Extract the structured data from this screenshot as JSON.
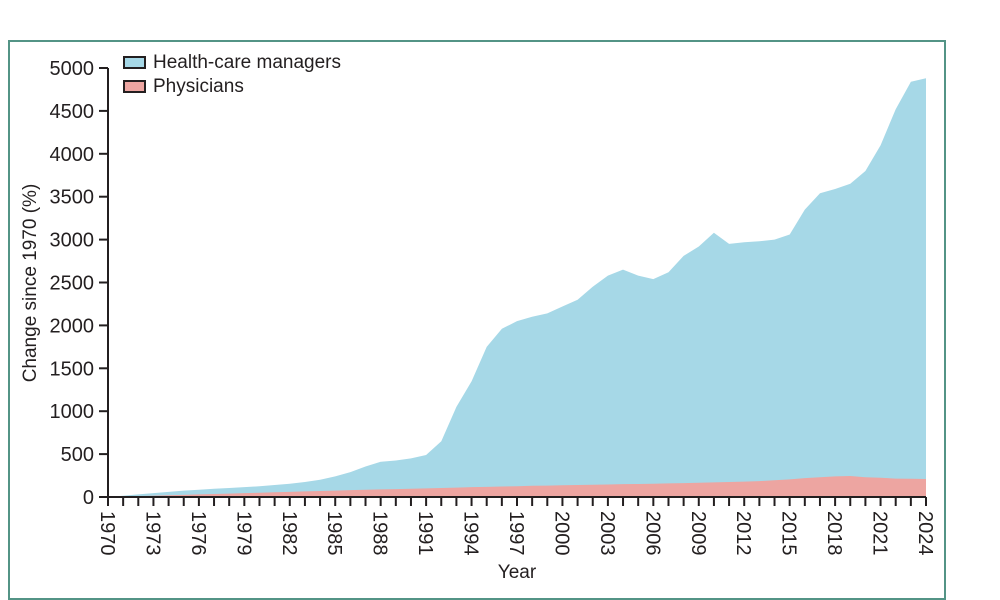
{
  "figure": {
    "frame_border_color": "#539486",
    "background_color": "#ffffff",
    "axis_color": "#231f20"
  },
  "chart_data": {
    "type": "area",
    "title": "",
    "xlabel": "Year",
    "ylabel": "Change since 1970 (%)",
    "xlim": [
      1970,
      2024
    ],
    "ylim": [
      0,
      5000
    ],
    "grid": false,
    "legend_position": "top-left",
    "y_ticks": [
      0,
      500,
      1000,
      1500,
      2000,
      2500,
      3000,
      3500,
      4000,
      4500,
      5000
    ],
    "x_major_ticks": [
      1970,
      1973,
      1976,
      1979,
      1982,
      1985,
      1988,
      1991,
      1994,
      1997,
      2000,
      2003,
      2006,
      2009,
      2012,
      2015,
      2018,
      2021,
      2024
    ],
    "x_minor_tick_step": 1,
    "years": [
      1970,
      1971,
      1972,
      1973,
      1974,
      1975,
      1976,
      1977,
      1978,
      1979,
      1980,
      1981,
      1982,
      1983,
      1984,
      1985,
      1986,
      1987,
      1988,
      1989,
      1990,
      1991,
      1992,
      1993,
      1994,
      1995,
      1996,
      1997,
      1998,
      1999,
      2000,
      2001,
      2002,
      2003,
      2004,
      2005,
      2006,
      2007,
      2008,
      2009,
      2010,
      2011,
      2012,
      2013,
      2014,
      2015,
      2016,
      2017,
      2018,
      2019,
      2020,
      2021,
      2022,
      2023,
      2024
    ],
    "series": [
      {
        "name": "Health-care managers",
        "color": "#a6d8e7",
        "values": [
          0,
          15,
          30,
          45,
          60,
          75,
          85,
          95,
          105,
          115,
          125,
          140,
          155,
          175,
          200,
          240,
          290,
          355,
          410,
          425,
          450,
          490,
          650,
          1050,
          1350,
          1750,
          1960,
          2050,
          2100,
          2140,
          2220,
          2300,
          2450,
          2580,
          2650,
          2580,
          2540,
          2620,
          2810,
          2920,
          3080,
          2950,
          2970,
          2980,
          3000,
          3060,
          3350,
          3540,
          3590,
          3650,
          3800,
          4100,
          4520,
          4840,
          4880
        ]
      },
      {
        "name": "Physicians",
        "color": "#eda5a1",
        "values": [
          0,
          5,
          10,
          15,
          20,
          25,
          30,
          35,
          40,
          45,
          50,
          55,
          60,
          65,
          70,
          75,
          80,
          85,
          88,
          92,
          95,
          100,
          105,
          110,
          115,
          118,
          122,
          126,
          130,
          133,
          136,
          140,
          143,
          146,
          150,
          152,
          155,
          158,
          162,
          166,
          170,
          175,
          180,
          185,
          195,
          205,
          220,
          230,
          240,
          245,
          230,
          225,
          215,
          212,
          210
        ]
      }
    ]
  }
}
